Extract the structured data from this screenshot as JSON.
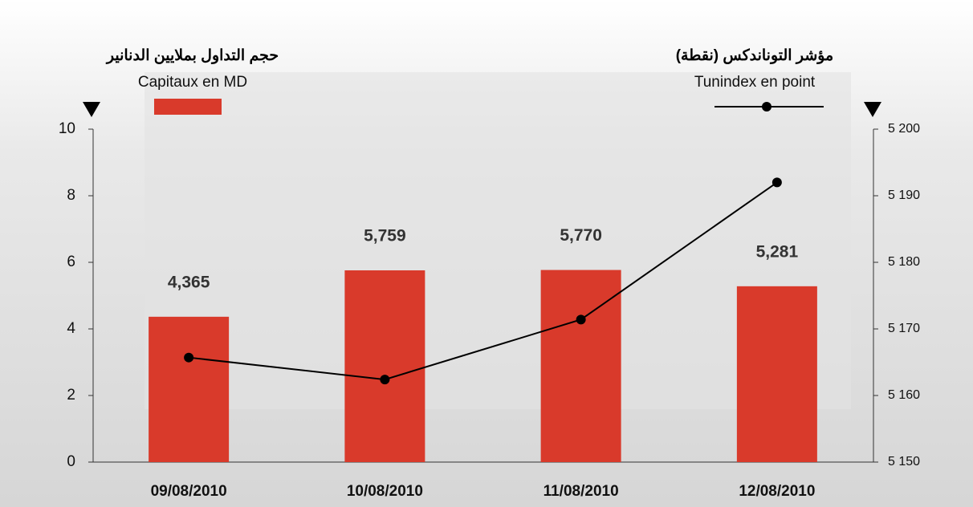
{
  "chart_data": {
    "type": "bar_line",
    "left_title": "حجم التداول بملايين الدنانير",
    "right_title": "مؤشر التوناندكس (نقطة)",
    "categories": [
      "09/08/2010",
      "10/08/2010",
      "11/08/2010",
      "12/08/2010"
    ],
    "series": [
      {
        "name": "Capitaux en MD",
        "color": "#d93a2b",
        "values": [
          4.365,
          5.759,
          5.77,
          5.281
        ],
        "value_labels": [
          "4,365",
          "5,759",
          "5,770",
          "5,281"
        ]
      },
      {
        "name": "Tunindex en point",
        "color": "#000000",
        "axis": "y2",
        "values": [
          5165.7,
          5162.4,
          5171.4,
          5192.0
        ]
      }
    ],
    "ylim": [
      0,
      10
    ],
    "yticks": [
      0,
      2,
      4,
      6,
      8,
      10
    ],
    "y2lim": [
      5150,
      5200
    ],
    "y2ticks": [
      {
        "value": 5150,
        "label": "5 150"
      },
      {
        "value": 5160,
        "label": "5 160"
      },
      {
        "value": 5170,
        "label": "5 170"
      },
      {
        "value": 5180,
        "label": "5 180"
      },
      {
        "value": 5190,
        "label": "5 190"
      },
      {
        "value": 5200,
        "label": "5 200"
      }
    ]
  }
}
